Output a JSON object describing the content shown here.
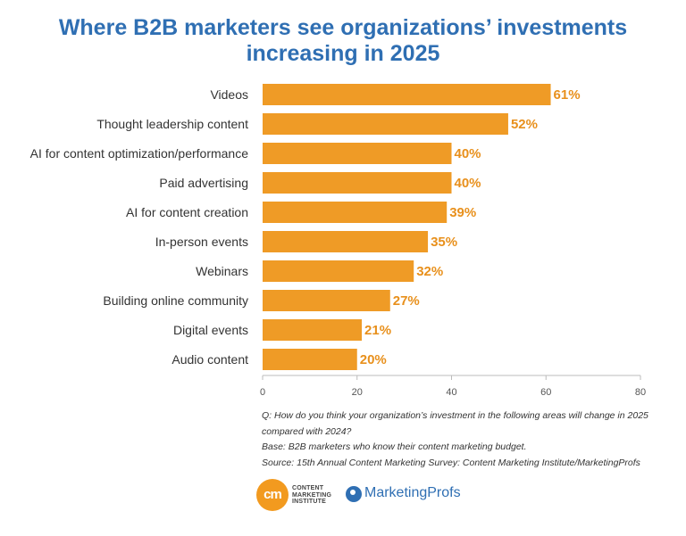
{
  "chart_data": {
    "type": "bar",
    "orientation": "horizontal",
    "title_line1": "Where B2B marketers see organizations’ investments",
    "title_line2": "increasing in 2025",
    "categories": [
      "Videos",
      "Thought leadership content",
      "AI for content optimization/performance",
      "Paid advertising",
      "AI for content creation",
      "In-person events",
      "Webinars",
      "Building online community",
      "Digital events",
      "Audio content"
    ],
    "values": [
      61,
      52,
      40,
      40,
      39,
      35,
      32,
      27,
      21,
      20
    ],
    "value_labels": [
      "61%",
      "52%",
      "40%",
      "40%",
      "39%",
      "35%",
      "32%",
      "27%",
      "21%",
      "20%"
    ],
    "xlim": [
      0,
      80
    ],
    "xticks": [
      0,
      20,
      40,
      60,
      80
    ],
    "xtick_labels": [
      "0",
      "20",
      "40",
      "60",
      "80"
    ],
    "grid": false,
    "bar_color": "#ef9b26",
    "label_color": "#e8901c"
  },
  "notes": {
    "question": "Q: How do you think your organization’s investment in the following areas will change in 2025 compared with 2024?",
    "base": "Base: B2B marketers who know their content marketing budget.",
    "source": "Source: 15th Annual Content Marketing Survey: Content Marketing Institute/MarketingProfs"
  },
  "logos": {
    "cmi_mark": "cm",
    "cmi_line1": "CONTENT",
    "cmi_line2": "MARKETING",
    "cmi_line3": "INSTITUTE",
    "marketingprofs": "MarketingProfs"
  }
}
